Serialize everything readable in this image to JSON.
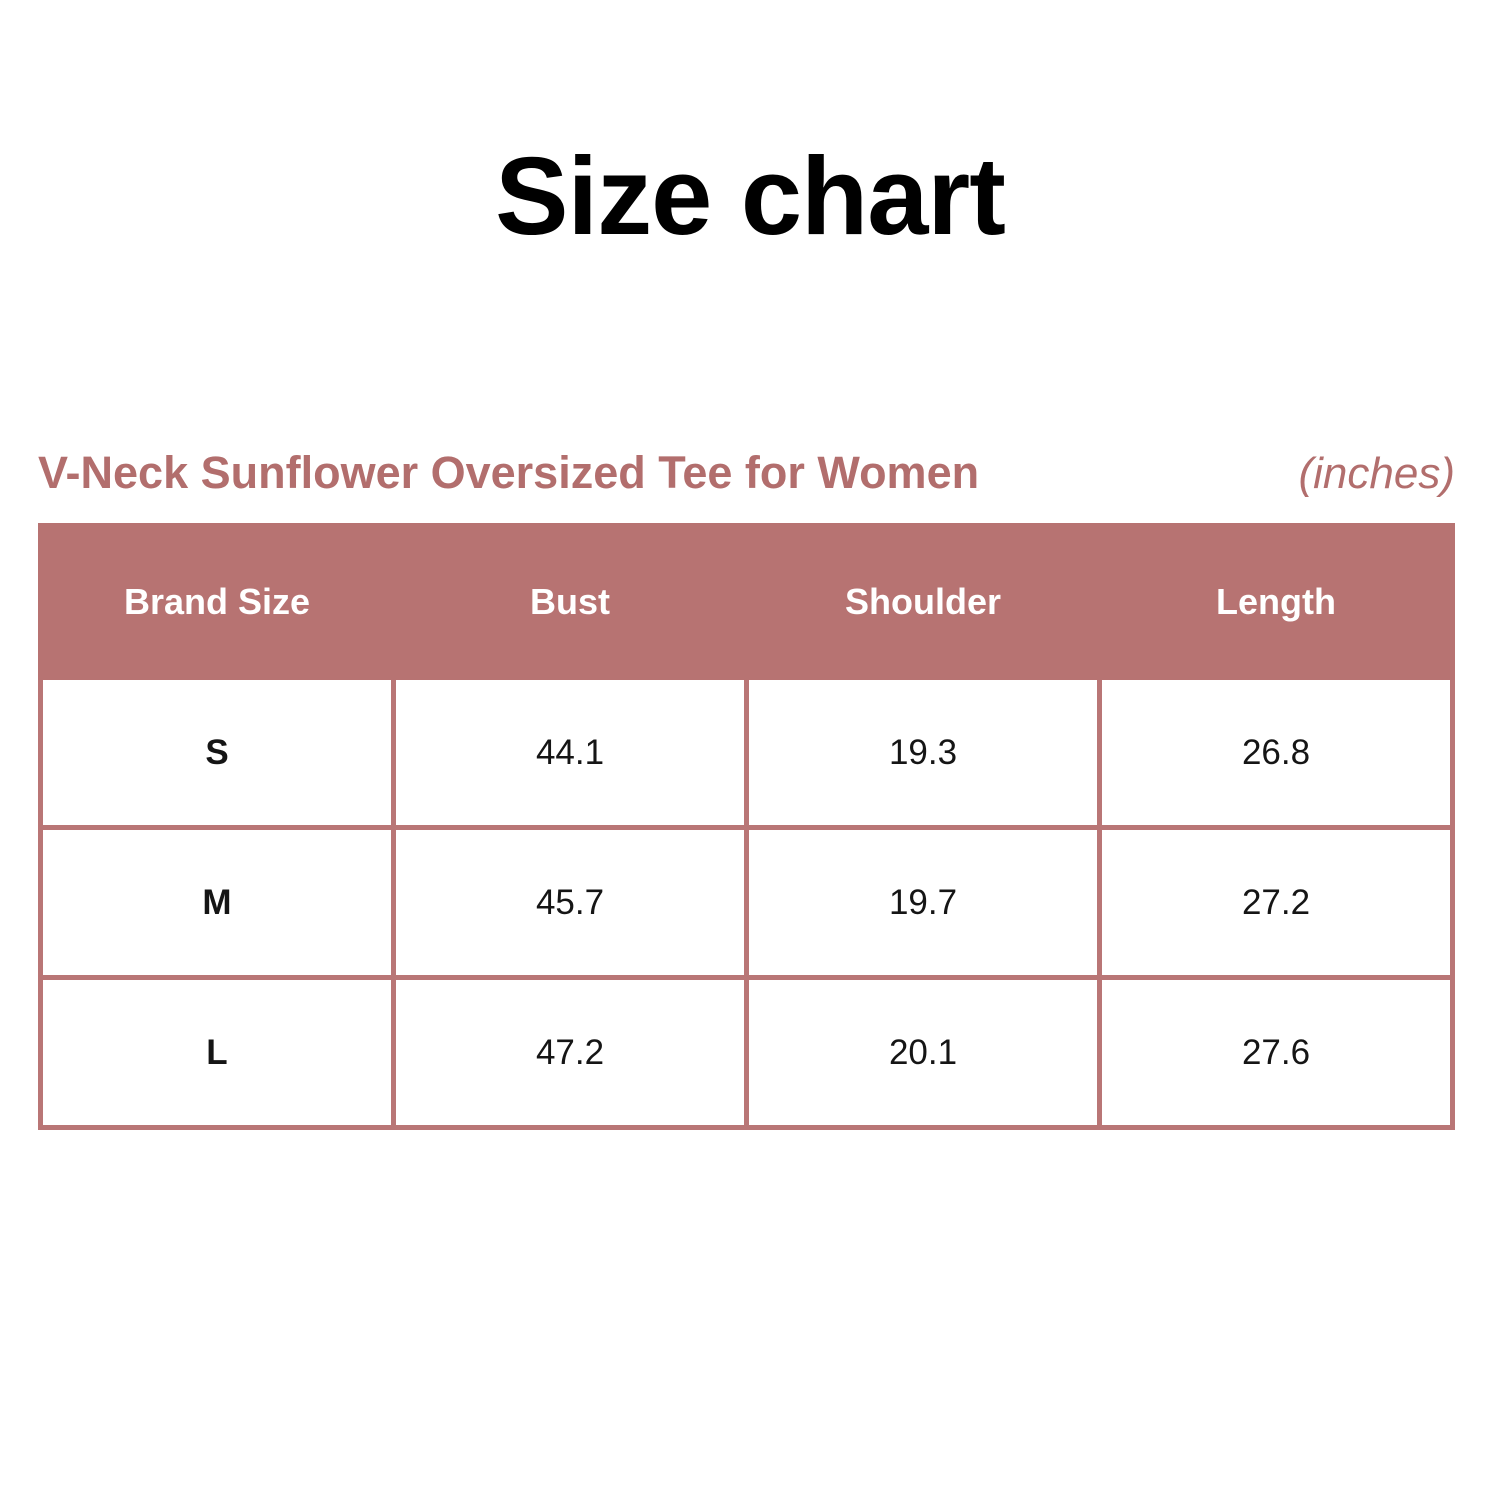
{
  "title": "Size chart",
  "subtitle": {
    "product": "V-Neck Sunflower Oversized Tee for Women",
    "unit": "(inches)"
  },
  "colors": {
    "accent": "#b77372",
    "border": "#b97676",
    "subtitle": "#b26e6d",
    "header_text": "#ffffff",
    "cell_text": "#151515",
    "background": "#ffffff"
  },
  "chart_data": {
    "type": "table",
    "title": "Size chart",
    "product": "V-Neck Sunflower Oversized Tee for Women",
    "units": "inches",
    "columns": [
      "Brand Size",
      "Bust",
      "Shoulder",
      "Length"
    ],
    "rows": [
      [
        "S",
        "44.1",
        "19.3",
        "26.8"
      ],
      [
        "M",
        "45.7",
        "19.7",
        "27.2"
      ],
      [
        "L",
        "47.2",
        "20.1",
        "27.6"
      ]
    ]
  }
}
